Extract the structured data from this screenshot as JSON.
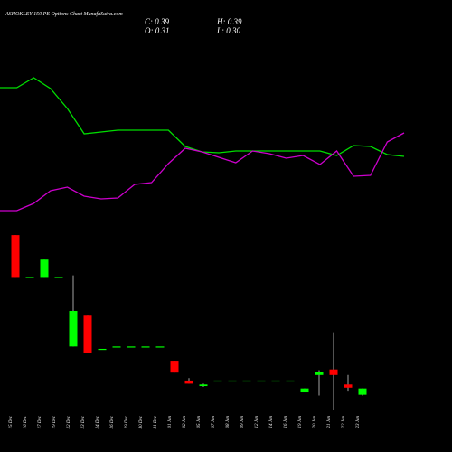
{
  "chart_data": {
    "type": "candlestick",
    "title": "ASHOKLEY 150 PE Options Chart MunafaSutra.com",
    "info": {
      "close": "C: 0.39",
      "high": "H: 0.39",
      "open": "O: 0.31",
      "low": "L: 0.30"
    },
    "categories": [
      "15 Dec",
      "16 Dec",
      "17 Dec",
      "19 Dec",
      "22 Dec",
      "23 Dec",
      "24 Dec",
      "26 Dec",
      "29 Dec",
      "30 Dec",
      "31 Dec",
      "01 Jan",
      "02 Jan",
      "05 Jan",
      "07 Jan",
      "08 Jan",
      "09 Jan",
      "12 Jan",
      "14 Jan",
      "16 Jan",
      "19 Jan",
      "20 Jan",
      "21 Jan",
      "22 Jan",
      "23 Jan"
    ],
    "open": [
      2.33,
      1.8,
      1.8,
      1.8,
      0.92,
      1.31,
      0.89,
      0.92,
      0.92,
      0.92,
      0.92,
      0.74,
      0.49,
      0.42,
      0.49,
      0.49,
      0.49,
      0.49,
      0.49,
      0.49,
      0.34,
      0.56,
      0.63,
      0.44,
      0.31
    ],
    "high": [
      2.33,
      1.8,
      2.02,
      1.8,
      1.82,
      1.31,
      0.89,
      0.92,
      0.92,
      0.92,
      0.92,
      0.74,
      0.52,
      0.45,
      0.49,
      0.49,
      0.49,
      0.49,
      0.49,
      0.49,
      0.39,
      0.62,
      1.1,
      0.56,
      0.39
    ],
    "low": [
      1.8,
      1.8,
      1.8,
      1.8,
      0.92,
      0.84,
      0.89,
      0.92,
      0.92,
      0.92,
      0.92,
      0.59,
      0.45,
      0.41,
      0.49,
      0.49,
      0.49,
      0.49,
      0.49,
      0.49,
      0.34,
      0.3,
      0.12,
      0.35,
      0.3
    ],
    "close": [
      1.8,
      1.8,
      2.02,
      1.8,
      1.37,
      0.84,
      0.89,
      0.92,
      0.92,
      0.92,
      0.92,
      0.59,
      0.45,
      0.44,
      0.49,
      0.49,
      0.49,
      0.49,
      0.49,
      0.49,
      0.39,
      0.6,
      0.56,
      0.4,
      0.39
    ],
    "up_color": "#00ff00",
    "down_color": "#ff0000",
    "ylim": [
      0.1,
      2.4
    ],
    "y2lim": [
      0,
      250
    ],
    "series": [
      {
        "color": "#00dd00",
        "axis": "y2",
        "values": [
          203,
          203,
          214,
          202,
          180,
          152,
          154,
          156,
          156,
          156,
          156,
          138,
          132,
          131,
          133,
          133,
          133,
          133,
          133,
          133,
          128,
          139,
          138,
          129,
          127
        ]
      },
      {
        "color": "#cc00cc",
        "axis": "y2",
        "values": [
          67,
          67,
          75,
          89,
          93,
          83,
          80,
          81,
          96,
          98,
          119,
          136,
          132,
          126,
          120,
          133,
          130,
          125,
          128,
          118,
          133,
          105,
          106,
          143,
          153
        ]
      }
    ]
  }
}
